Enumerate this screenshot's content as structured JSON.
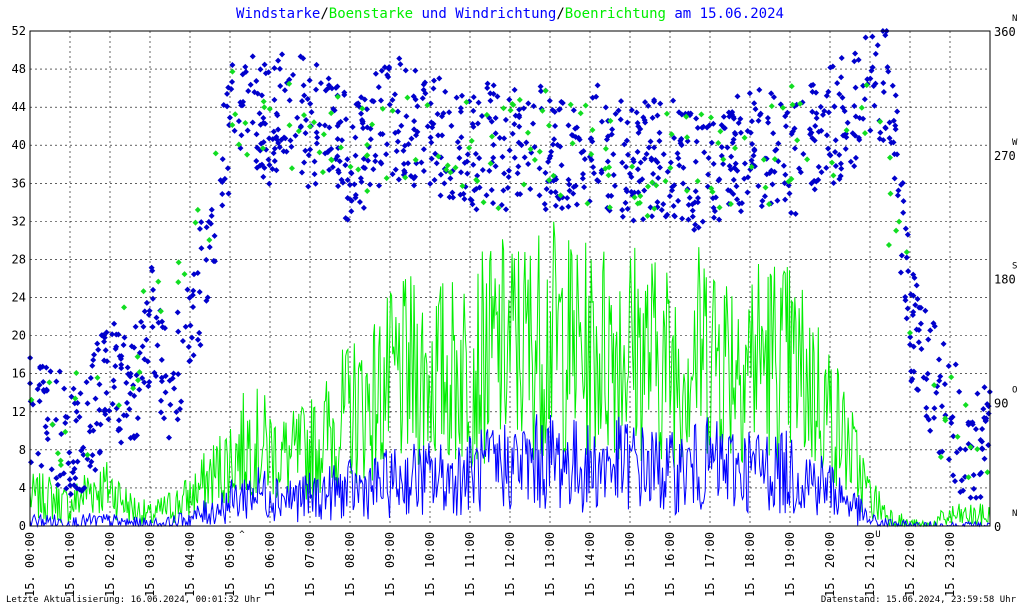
{
  "colors": {
    "speed": "#0000ff",
    "gust": "#00ee00",
    "direction": "#0000cc",
    "gust_direction": "#11dd22",
    "marker": "#dd0000",
    "grid": "#000000",
    "text": "#000000"
  },
  "title": {
    "part1": "Windstarke",
    "sep1": "/",
    "part2": "Boenstarke",
    "part3": " und Windrichtung",
    "sep2": "/",
    "part4": "Boenrichtung",
    "part5": " am 15.06.2024"
  },
  "footer": {
    "left": "Letzte Aktualisierung: 16.06.2024, 00:01:32 Uhr",
    "right": "Datenstand: 15.06.2024, 23:59:58 Uhr"
  },
  "chart_data": {
    "type": "line",
    "x_unit": "time of day (hours)",
    "xlim": [
      0,
      24
    ],
    "ylim": [
      0,
      52
    ],
    "y2lim": [
      0,
      360
    ],
    "y_ticks": [
      "0",
      "4",
      "8",
      "12",
      "16",
      "20",
      "24",
      "28",
      "32",
      "36",
      "40",
      "44",
      "48",
      "52"
    ],
    "y2_ticks": [
      {
        "value": "0",
        "dir": "N"
      },
      {
        "value": "90",
        "dir": "O"
      },
      {
        "value": "180",
        "dir": "S"
      },
      {
        "value": "270",
        "dir": "W"
      },
      {
        "value": "360",
        "dir": "N"
      }
    ],
    "x_ticks": [
      "15. 00:00",
      "15. 01:00",
      "15. 02:00",
      "15. 03:00",
      "15. 04:00",
      "15. 05:00",
      "15. 06:00",
      "15. 07:00",
      "15. 08:00",
      "15. 09:00",
      "15. 10:00",
      "15. 11:00",
      "15. 12:00",
      "15. 13:00",
      "15. 14:00",
      "15. 15:00",
      "15. 16:00",
      "15. 17:00",
      "15. 18:00",
      "15. 19:00",
      "15. 20:00",
      "15. 21:00",
      "15. 22:00",
      "15. 23:00"
    ],
    "markers": [
      {
        "hour": 5.3,
        "label": "^"
      },
      {
        "hour": 21.2,
        "label": "U"
      }
    ],
    "grid": true,
    "series": [
      {
        "name": "Windstarke",
        "kind": "line",
        "hours": [
          0,
          0.5,
          1,
          1.5,
          2,
          2.5,
          3,
          3.5,
          4,
          4.5,
          5,
          5.5,
          6,
          6.5,
          7,
          7.5,
          8,
          8.5,
          9,
          9.5,
          10,
          10.5,
          11,
          11.5,
          12,
          12.5,
          13,
          13.5,
          14,
          14.5,
          15,
          15.5,
          16,
          16.5,
          17,
          17.5,
          18,
          18.5,
          19,
          19.5,
          20,
          20.5,
          21,
          21.5,
          22,
          22.5,
          23,
          23.5
        ],
        "values": [
          0.5,
          0.5,
          0.3,
          0.5,
          0.5,
          0.3,
          0.2,
          0.3,
          0.8,
          1.5,
          2.5,
          3.5,
          3.5,
          3,
          3,
          3.5,
          3.8,
          4,
          4.5,
          5,
          5,
          5,
          5.5,
          6,
          6.5,
          6.5,
          7,
          6.5,
          6,
          6.5,
          6.5,
          6,
          5.5,
          6,
          6.5,
          6,
          6,
          6,
          5.5,
          5,
          4,
          2.5,
          0.5,
          0.2,
          0,
          0,
          0,
          0
        ]
      },
      {
        "name": "Boenstarke",
        "kind": "line",
        "hours": [
          0,
          0.5,
          1,
          1.5,
          2,
          2.5,
          3,
          3.5,
          4,
          4.5,
          5,
          5.5,
          6,
          6.5,
          7,
          7.5,
          8,
          8.5,
          9,
          9.5,
          10,
          10.5,
          11,
          11.5,
          12,
          12.5,
          13,
          13.5,
          14,
          14.5,
          15,
          15.5,
          16,
          16.5,
          17,
          17.5,
          18,
          18.5,
          19,
          19.5,
          20,
          20.5,
          21,
          21.5,
          22,
          22.5,
          23,
          23.5
        ],
        "values": [
          3,
          3,
          2,
          4,
          4,
          2,
          1,
          2,
          3,
          5,
          7,
          9,
          8,
          7,
          8,
          10,
          12,
          13,
          15,
          16,
          16,
          16,
          17,
          18,
          19,
          19,
          20,
          19,
          18,
          19,
          19,
          18,
          17,
          18,
          19,
          18,
          18,
          18,
          17,
          15,
          12,
          8,
          3,
          1,
          0,
          0,
          1,
          1
        ]
      },
      {
        "name": "Windrichtung",
        "kind": "scatter",
        "unit": "degrees",
        "hours": [
          0,
          0.5,
          1,
          1.5,
          2,
          2.5,
          3,
          3.5,
          4,
          4.5,
          5,
          5.5,
          6,
          6.5,
          7,
          7.5,
          8,
          8.5,
          9,
          9.5,
          10,
          10.5,
          11,
          11.5,
          12,
          12.5,
          13,
          13.5,
          14,
          14.5,
          15,
          15.5,
          16,
          16.5,
          17,
          17.5,
          18,
          18.5,
          19,
          19.5,
          20,
          20.5,
          21,
          21.5,
          22,
          22.5,
          23,
          23.5
        ],
        "values": [
          85,
          80,
          60,
          70,
          120,
          90,
          150,
          100,
          150,
          200,
          290,
          300,
          290,
          310,
          290,
          300,
          260,
          280,
          300,
          290,
          290,
          280,
          270,
          280,
          270,
          280,
          270,
          270,
          280,
          270,
          260,
          270,
          270,
          260,
          260,
          270,
          270,
          280,
          260,
          280,
          290,
          300,
          330,
          320,
          150,
          110,
          80,
          60
        ]
      },
      {
        "name": "Boenrichtung",
        "kind": "scatter",
        "unit": "degrees",
        "hours": [
          0,
          1,
          2,
          3,
          4,
          5,
          6,
          7,
          8,
          9,
          10,
          11,
          12,
          13,
          14,
          15,
          16,
          17,
          18,
          19,
          20,
          21,
          22,
          23
        ],
        "values": [
          80,
          70,
          110,
          140,
          180,
          290,
          300,
          300,
          270,
          290,
          290,
          270,
          270,
          280,
          270,
          260,
          270,
          270,
          260,
          280,
          290,
          320,
          150,
          70
        ]
      }
    ]
  }
}
